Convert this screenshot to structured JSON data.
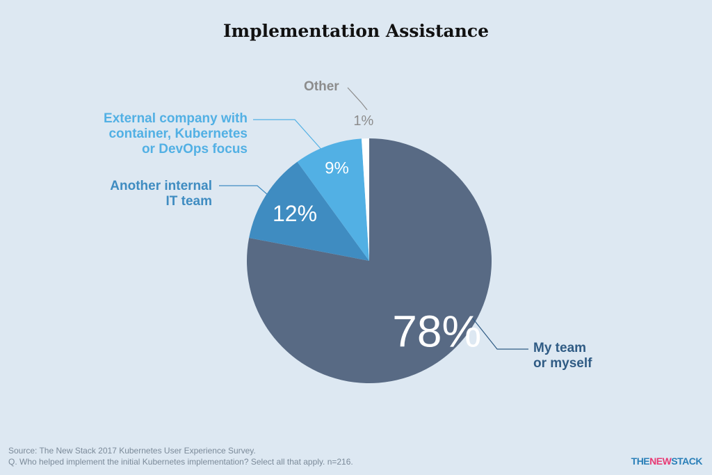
{
  "chart_data": {
    "type": "pie",
    "title": "Implementation Assistance",
    "slices": [
      {
        "label_lines": [
          "My team",
          "or myself"
        ],
        "value": 78,
        "pct_label": "78%",
        "color": "#586a84",
        "label_color": "#2f5b84"
      },
      {
        "label_lines": [
          "Another internal",
          "IT team"
        ],
        "value": 12,
        "pct_label": "12%",
        "color": "#3f8cc1",
        "label_color": "#3f8cc1"
      },
      {
        "label_lines": [
          "External company with",
          "container, Kubernetes",
          "or DevOps focus"
        ],
        "value": 9,
        "pct_label": "9%",
        "color": "#52b0e4",
        "label_color": "#52b0e4"
      },
      {
        "label_lines": [
          "Other"
        ],
        "value": 1,
        "pct_label": "1%",
        "color": "#ffffff",
        "label_color": "#8c8c8c"
      }
    ]
  },
  "footer": {
    "source": "Source: The New Stack 2017 Kubernetes User Experience Survey.",
    "question": "Q. Who helped implement the initial Kubernetes implementation? Select all that apply. n=216."
  },
  "logo": {
    "the": "THE",
    "new": "NEW",
    "stack": "STACK"
  }
}
